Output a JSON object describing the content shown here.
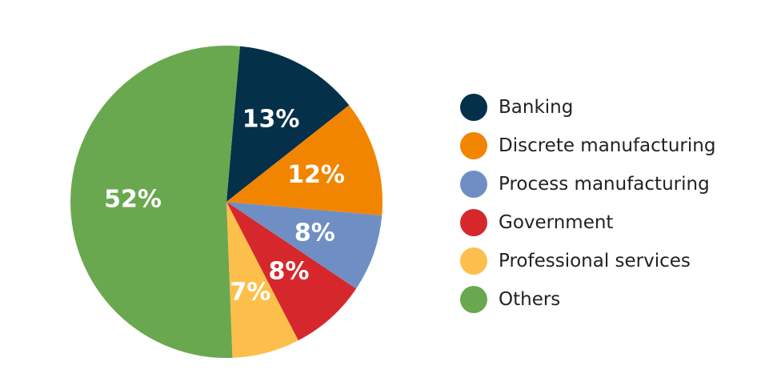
{
  "chart_data": {
    "type": "pie",
    "title": "",
    "categories": [
      "Banking",
      "Discrete manufacturing",
      "Process manufacturing",
      "Government",
      "Professional services",
      "Others"
    ],
    "values": [
      13,
      12,
      8,
      8,
      7,
      52
    ],
    "labels": [
      "13%",
      "12%",
      "8%",
      "8%",
      "7%",
      "52%"
    ],
    "colors": [
      "#05304a",
      "#f28500",
      "#6f8fc4",
      "#d6282c",
      "#fdbf4b",
      "#6aa84f"
    ],
    "start_angle_deg": 5,
    "direction": "clockwise",
    "legend_position": "right"
  }
}
